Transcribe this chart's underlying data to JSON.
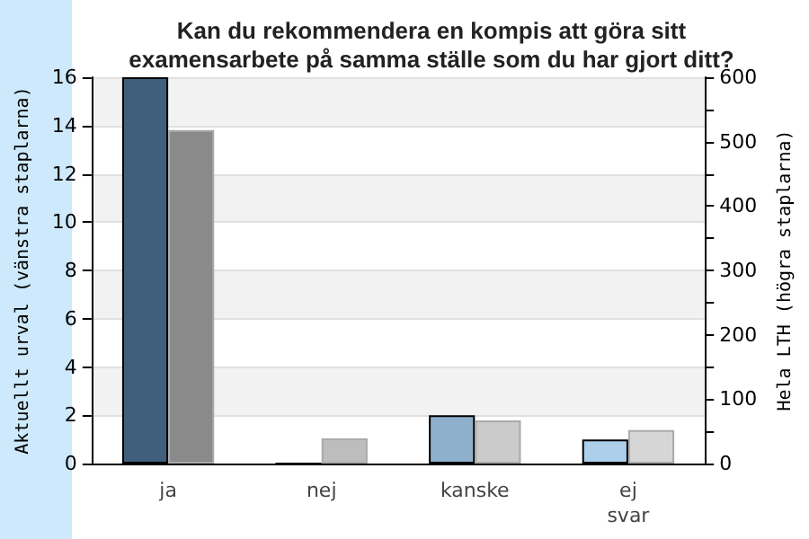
{
  "chart_data": {
    "type": "bar",
    "title": "Kan du rekommendera en kompis att göra sitt\nexamensarbete på samma ställe som du har gjort ditt?",
    "ylabel": "Aktuellt urval (vänstra staplarna)",
    "y2label": "Hela LTH (högra staplarna)",
    "categories": [
      "ja",
      "nej",
      "kanske",
      "ej\nsvar"
    ],
    "series": [
      {
        "colors": [
          "#3f5f7b",
          "#3f5f7b",
          "#8eb0cc",
          "#acd0ea"
        ],
        "values": [
          16,
          0,
          2,
          1
        ]
      },
      {
        "axis": "y2",
        "colors": [
          "#8a8a8a",
          "#bdbdbd",
          "#cbcbcb",
          "#d6d6d6"
        ],
        "values": [
          518,
          39,
          67,
          52
        ]
      }
    ],
    "ylim": [
      0,
      16
    ],
    "yticks": [
      0,
      2,
      4,
      6,
      8,
      10,
      12,
      14,
      16
    ],
    "y2lim": [
      0,
      600
    ],
    "y2ticks": [
      0,
      {
        "value": 50,
        "label": null
      },
      100,
      {
        "value": 150,
        "label": null
      },
      200,
      {
        "value": 250,
        "label": null
      },
      300,
      {
        "value": 350,
        "label": null
      },
      400,
      {
        "value": 450,
        "label": null
      },
      500,
      {
        "value": 550,
        "label": null
      },
      600
    ],
    "grid": true
  }
}
